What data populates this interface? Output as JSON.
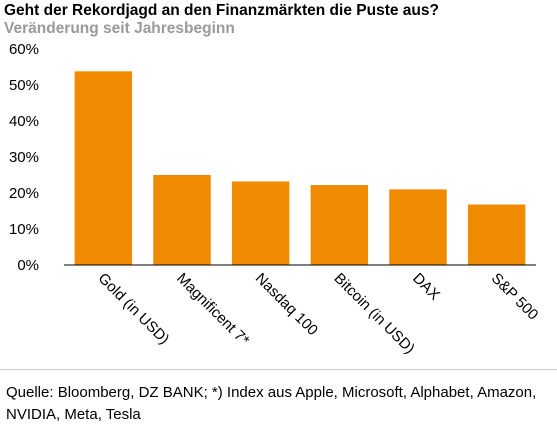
{
  "header": {
    "title": "Geht der Rekordjagd an den Finanzmärkten die Puste aus?",
    "subtitle": "Veränderung seit Jahresbeginn"
  },
  "chart_data": {
    "type": "bar",
    "title": "Geht der Rekordjagd an den Finanzmärkten die Puste aus?",
    "subtitle": "Veränderung seit Jahresbeginn",
    "categories": [
      "Gold (in USD)",
      "Magnificent 7*",
      "Nasdaq 100",
      "Bitcoin (in USD)",
      "DAX",
      "S&P 500"
    ],
    "values": [
      53.8,
      25.0,
      23.2,
      22.2,
      21.0,
      16.8
    ],
    "ylim": [
      0,
      60
    ],
    "yticks": [
      0,
      10,
      20,
      30,
      40,
      50,
      60
    ],
    "ytick_labels": [
      "0%",
      "10%",
      "20%",
      "30%",
      "40%",
      "50%",
      "60%"
    ],
    "xlabel": "",
    "ylabel": "",
    "grid": false,
    "colors": {
      "bar": "#f08a00",
      "axis": "#000000"
    }
  },
  "footer": {
    "source": "Quelle: Bloomberg, DZ BANK; *) Index aus Apple, Microsoft, Alphabet, Amazon, NVIDIA, Meta, Tesla"
  }
}
